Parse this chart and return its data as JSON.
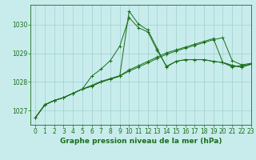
{
  "title": "Graphe pression niveau de la mer (hPa)",
  "background_color": "#c8ecec",
  "grid_color": "#a0d0d0",
  "line_color": "#1a6e1a",
  "xlim": [
    -0.5,
    23
  ],
  "ylim": [
    1026.5,
    1030.7
  ],
  "yticks": [
    1027,
    1028,
    1029,
    1030
  ],
  "xticks": [
    0,
    1,
    2,
    3,
    4,
    5,
    6,
    7,
    8,
    9,
    10,
    11,
    12,
    13,
    14,
    15,
    16,
    17,
    18,
    19,
    20,
    21,
    22,
    23
  ],
  "series": [
    [
      1026.75,
      1027.2,
      1027.35,
      1027.45,
      1027.6,
      1027.75,
      1027.85,
      1028.0,
      1028.1,
      1028.2,
      1028.38,
      1028.52,
      1028.67,
      1028.82,
      1028.97,
      1029.08,
      1029.18,
      1029.28,
      1029.38,
      1029.48,
      1029.55,
      1028.75,
      1028.6,
      1028.65
    ],
    [
      1026.75,
      1027.2,
      1027.35,
      1027.45,
      1027.6,
      1027.75,
      1028.2,
      1028.45,
      1028.75,
      1029.25,
      1030.25,
      1029.9,
      1029.75,
      1029.1,
      1028.55,
      1028.72,
      1028.78,
      1028.78,
      1028.78,
      1028.72,
      1028.68,
      1028.58,
      1028.52,
      1028.62
    ],
    [
      1026.75,
      1027.2,
      1027.35,
      1027.45,
      1027.6,
      1027.75,
      1027.85,
      1028.0,
      1028.1,
      1028.2,
      1030.48,
      1030.02,
      1029.82,
      1029.17,
      1028.52,
      1028.72,
      1028.78,
      1028.78,
      1028.78,
      1028.72,
      1028.68,
      1028.58,
      1028.52,
      1028.62
    ],
    [
      1026.75,
      1027.2,
      1027.35,
      1027.45,
      1027.6,
      1027.75,
      1027.88,
      1028.02,
      1028.12,
      1028.22,
      1028.42,
      1028.57,
      1028.72,
      1028.87,
      1029.02,
      1029.12,
      1029.22,
      1029.32,
      1029.42,
      1029.52,
      1028.68,
      1028.52,
      1028.58,
      1028.62
    ]
  ],
  "title_fontsize": 6.5,
  "tick_fontsize": 5.5,
  "figsize": [
    3.2,
    2.0
  ],
  "dpi": 100
}
